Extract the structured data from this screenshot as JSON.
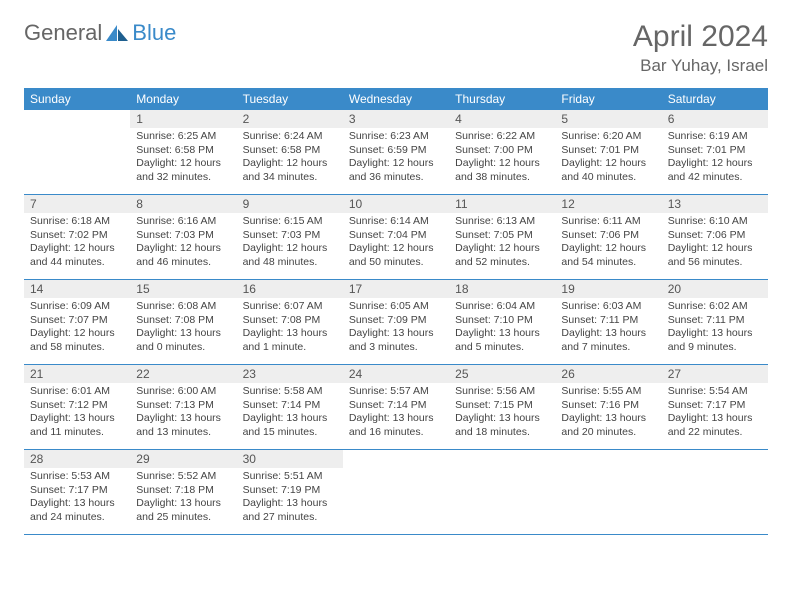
{
  "brand": {
    "part1": "General",
    "part2": "Blue"
  },
  "title": "April 2024",
  "location": "Bar Yuhay, Israel",
  "header_bg": "#3a8ac9",
  "daynum_bg": "#eeeeee",
  "weekdays": [
    "Sunday",
    "Monday",
    "Tuesday",
    "Wednesday",
    "Thursday",
    "Friday",
    "Saturday"
  ],
  "weeks": [
    [
      {
        "n": "",
        "sr": "",
        "ss": "",
        "dl1": "",
        "dl2": ""
      },
      {
        "n": "1",
        "sr": "Sunrise: 6:25 AM",
        "ss": "Sunset: 6:58 PM",
        "dl1": "Daylight: 12 hours",
        "dl2": "and 32 minutes."
      },
      {
        "n": "2",
        "sr": "Sunrise: 6:24 AM",
        "ss": "Sunset: 6:58 PM",
        "dl1": "Daylight: 12 hours",
        "dl2": "and 34 minutes."
      },
      {
        "n": "3",
        "sr": "Sunrise: 6:23 AM",
        "ss": "Sunset: 6:59 PM",
        "dl1": "Daylight: 12 hours",
        "dl2": "and 36 minutes."
      },
      {
        "n": "4",
        "sr": "Sunrise: 6:22 AM",
        "ss": "Sunset: 7:00 PM",
        "dl1": "Daylight: 12 hours",
        "dl2": "and 38 minutes."
      },
      {
        "n": "5",
        "sr": "Sunrise: 6:20 AM",
        "ss": "Sunset: 7:01 PM",
        "dl1": "Daylight: 12 hours",
        "dl2": "and 40 minutes."
      },
      {
        "n": "6",
        "sr": "Sunrise: 6:19 AM",
        "ss": "Sunset: 7:01 PM",
        "dl1": "Daylight: 12 hours",
        "dl2": "and 42 minutes."
      }
    ],
    [
      {
        "n": "7",
        "sr": "Sunrise: 6:18 AM",
        "ss": "Sunset: 7:02 PM",
        "dl1": "Daylight: 12 hours",
        "dl2": "and 44 minutes."
      },
      {
        "n": "8",
        "sr": "Sunrise: 6:16 AM",
        "ss": "Sunset: 7:03 PM",
        "dl1": "Daylight: 12 hours",
        "dl2": "and 46 minutes."
      },
      {
        "n": "9",
        "sr": "Sunrise: 6:15 AM",
        "ss": "Sunset: 7:03 PM",
        "dl1": "Daylight: 12 hours",
        "dl2": "and 48 minutes."
      },
      {
        "n": "10",
        "sr": "Sunrise: 6:14 AM",
        "ss": "Sunset: 7:04 PM",
        "dl1": "Daylight: 12 hours",
        "dl2": "and 50 minutes."
      },
      {
        "n": "11",
        "sr": "Sunrise: 6:13 AM",
        "ss": "Sunset: 7:05 PM",
        "dl1": "Daylight: 12 hours",
        "dl2": "and 52 minutes."
      },
      {
        "n": "12",
        "sr": "Sunrise: 6:11 AM",
        "ss": "Sunset: 7:06 PM",
        "dl1": "Daylight: 12 hours",
        "dl2": "and 54 minutes."
      },
      {
        "n": "13",
        "sr": "Sunrise: 6:10 AM",
        "ss": "Sunset: 7:06 PM",
        "dl1": "Daylight: 12 hours",
        "dl2": "and 56 minutes."
      }
    ],
    [
      {
        "n": "14",
        "sr": "Sunrise: 6:09 AM",
        "ss": "Sunset: 7:07 PM",
        "dl1": "Daylight: 12 hours",
        "dl2": "and 58 minutes."
      },
      {
        "n": "15",
        "sr": "Sunrise: 6:08 AM",
        "ss": "Sunset: 7:08 PM",
        "dl1": "Daylight: 13 hours",
        "dl2": "and 0 minutes."
      },
      {
        "n": "16",
        "sr": "Sunrise: 6:07 AM",
        "ss": "Sunset: 7:08 PM",
        "dl1": "Daylight: 13 hours",
        "dl2": "and 1 minute."
      },
      {
        "n": "17",
        "sr": "Sunrise: 6:05 AM",
        "ss": "Sunset: 7:09 PM",
        "dl1": "Daylight: 13 hours",
        "dl2": "and 3 minutes."
      },
      {
        "n": "18",
        "sr": "Sunrise: 6:04 AM",
        "ss": "Sunset: 7:10 PM",
        "dl1": "Daylight: 13 hours",
        "dl2": "and 5 minutes."
      },
      {
        "n": "19",
        "sr": "Sunrise: 6:03 AM",
        "ss": "Sunset: 7:11 PM",
        "dl1": "Daylight: 13 hours",
        "dl2": "and 7 minutes."
      },
      {
        "n": "20",
        "sr": "Sunrise: 6:02 AM",
        "ss": "Sunset: 7:11 PM",
        "dl1": "Daylight: 13 hours",
        "dl2": "and 9 minutes."
      }
    ],
    [
      {
        "n": "21",
        "sr": "Sunrise: 6:01 AM",
        "ss": "Sunset: 7:12 PM",
        "dl1": "Daylight: 13 hours",
        "dl2": "and 11 minutes."
      },
      {
        "n": "22",
        "sr": "Sunrise: 6:00 AM",
        "ss": "Sunset: 7:13 PM",
        "dl1": "Daylight: 13 hours",
        "dl2": "and 13 minutes."
      },
      {
        "n": "23",
        "sr": "Sunrise: 5:58 AM",
        "ss": "Sunset: 7:14 PM",
        "dl1": "Daylight: 13 hours",
        "dl2": "and 15 minutes."
      },
      {
        "n": "24",
        "sr": "Sunrise: 5:57 AM",
        "ss": "Sunset: 7:14 PM",
        "dl1": "Daylight: 13 hours",
        "dl2": "and 16 minutes."
      },
      {
        "n": "25",
        "sr": "Sunrise: 5:56 AM",
        "ss": "Sunset: 7:15 PM",
        "dl1": "Daylight: 13 hours",
        "dl2": "and 18 minutes."
      },
      {
        "n": "26",
        "sr": "Sunrise: 5:55 AM",
        "ss": "Sunset: 7:16 PM",
        "dl1": "Daylight: 13 hours",
        "dl2": "and 20 minutes."
      },
      {
        "n": "27",
        "sr": "Sunrise: 5:54 AM",
        "ss": "Sunset: 7:17 PM",
        "dl1": "Daylight: 13 hours",
        "dl2": "and 22 minutes."
      }
    ],
    [
      {
        "n": "28",
        "sr": "Sunrise: 5:53 AM",
        "ss": "Sunset: 7:17 PM",
        "dl1": "Daylight: 13 hours",
        "dl2": "and 24 minutes."
      },
      {
        "n": "29",
        "sr": "Sunrise: 5:52 AM",
        "ss": "Sunset: 7:18 PM",
        "dl1": "Daylight: 13 hours",
        "dl2": "and 25 minutes."
      },
      {
        "n": "30",
        "sr": "Sunrise: 5:51 AM",
        "ss": "Sunset: 7:19 PM",
        "dl1": "Daylight: 13 hours",
        "dl2": "and 27 minutes."
      },
      {
        "n": "",
        "sr": "",
        "ss": "",
        "dl1": "",
        "dl2": ""
      },
      {
        "n": "",
        "sr": "",
        "ss": "",
        "dl1": "",
        "dl2": ""
      },
      {
        "n": "",
        "sr": "",
        "ss": "",
        "dl1": "",
        "dl2": ""
      },
      {
        "n": "",
        "sr": "",
        "ss": "",
        "dl1": "",
        "dl2": ""
      }
    ]
  ]
}
